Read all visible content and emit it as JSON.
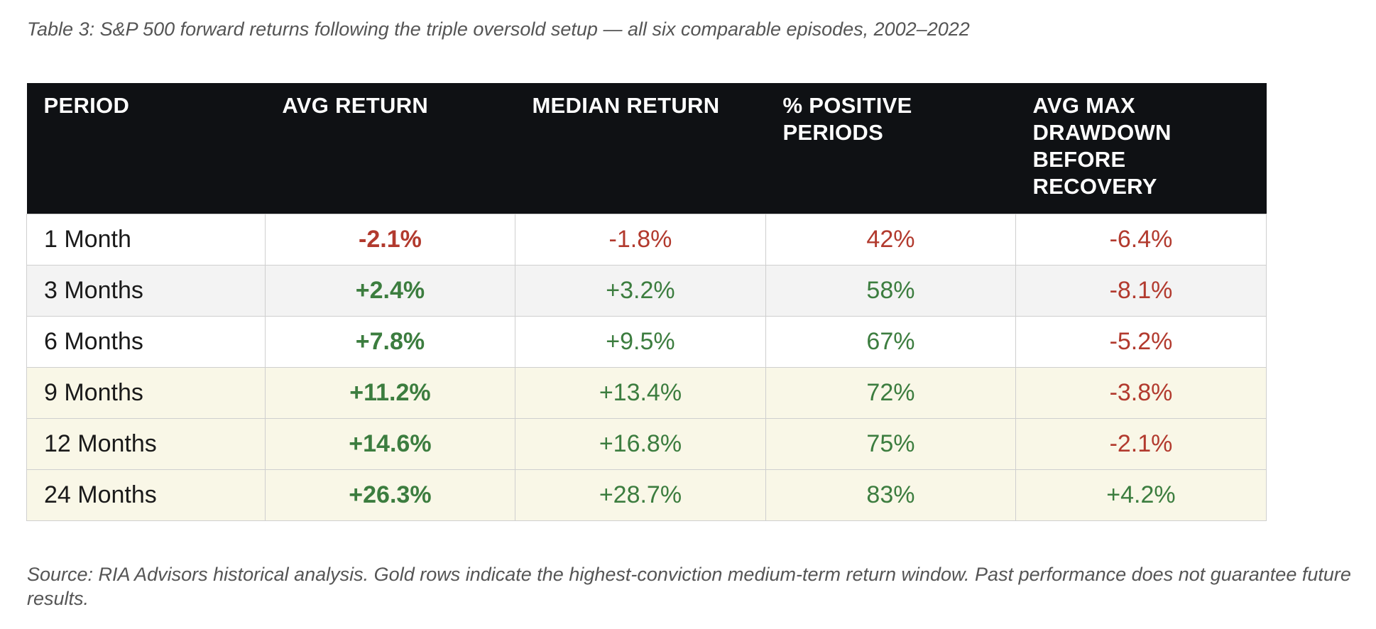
{
  "caption": "Table 3: S&P 500 forward returns following the triple oversold setup — all six comparable episodes, 2002–2022",
  "colors": {
    "header_bg": "#0f1114",
    "negative": "#b23a2e",
    "positive": "#3c7d3f",
    "gold_row": "#f9f7e7",
    "gray_row": "#f3f3f3"
  },
  "table": {
    "headers": [
      "PERIOD",
      "AVG RETURN",
      "MEDIAN RETURN",
      "% POSITIVE PERIODS",
      "AVG MAX DRAWDOWN BEFORE RECOVERY"
    ],
    "rows": [
      {
        "period": "1 Month",
        "avg": "-2.1%",
        "median": "-1.8%",
        "positive": "42%",
        "drawdown": "-6.4%",
        "style": "white"
      },
      {
        "period": "3 Months",
        "avg": "+2.4%",
        "median": "+3.2%",
        "positive": "58%",
        "drawdown": "-8.1%",
        "style": "gray"
      },
      {
        "period": "6 Months",
        "avg": "+7.8%",
        "median": "+9.5%",
        "positive": "67%",
        "drawdown": "-5.2%",
        "style": "white"
      },
      {
        "period": "9 Months",
        "avg": "+11.2%",
        "median": "+13.4%",
        "positive": "72%",
        "drawdown": "-3.8%",
        "style": "gold"
      },
      {
        "period": "12 Months",
        "avg": "+14.6%",
        "median": "+16.8%",
        "positive": "75%",
        "drawdown": "-2.1%",
        "style": "gold"
      },
      {
        "period": "24 Months",
        "avg": "+26.3%",
        "median": "+28.7%",
        "positive": "83%",
        "drawdown": "+4.2%",
        "style": "gold"
      }
    ]
  },
  "source": "Source: RIA Advisors historical analysis. Gold rows indicate the highest-conviction medium-term return window. Past performance does not guarantee future results."
}
